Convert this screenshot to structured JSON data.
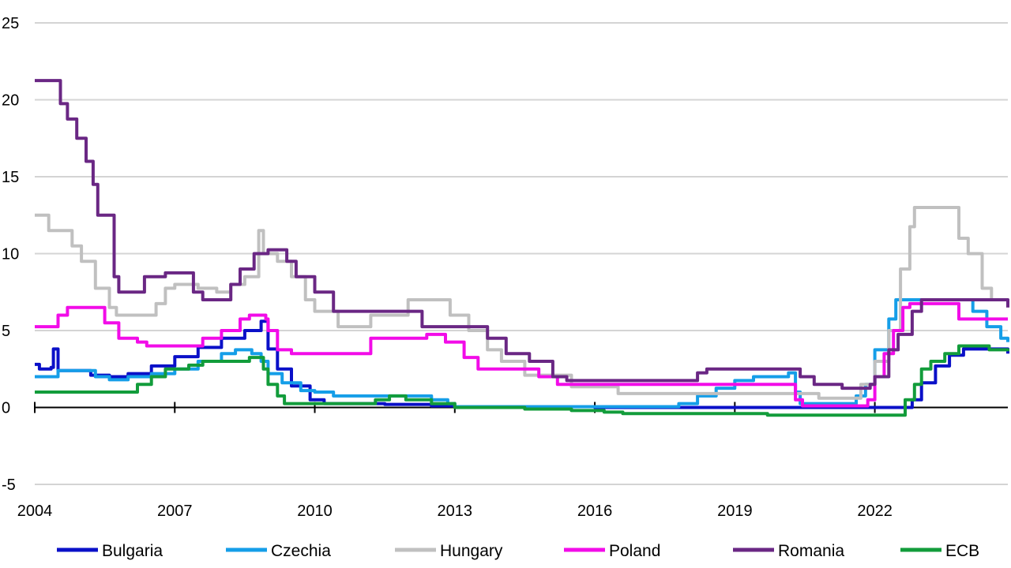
{
  "chart_data": {
    "type": "line",
    "step": true,
    "title": "",
    "xlabel": "",
    "ylabel": "",
    "xlim": [
      2004,
      2024.85
    ],
    "ylim": [
      -5,
      25
    ],
    "yticks": [
      -5,
      0,
      5,
      10,
      15,
      20,
      25
    ],
    "ytick_labels": [
      "-5",
      "0",
      "5",
      "10",
      "15",
      "20",
      "25"
    ],
    "xticks": [
      2004,
      2007,
      2010,
      2013,
      2016,
      2019,
      2022
    ],
    "xtick_labels": [
      "2004",
      "2007",
      "2010",
      "2013",
      "2016",
      "2019",
      "2022"
    ],
    "grid": "horizontal",
    "legend_position": "bottom",
    "series": [
      {
        "name": "Bulgaria",
        "color": "#0a10c8",
        "points": [
          [
            2004,
            2.8
          ],
          [
            2004.1,
            2.5
          ],
          [
            2004.35,
            2.6
          ],
          [
            2004.4,
            3.8
          ],
          [
            2004.5,
            2.4
          ],
          [
            2005.0,
            2.4
          ],
          [
            2005.2,
            2.1
          ],
          [
            2005.6,
            2.0
          ],
          [
            2006.0,
            2.2
          ],
          [
            2006.5,
            2.7
          ],
          [
            2007.0,
            3.3
          ],
          [
            2007.5,
            3.9
          ],
          [
            2008.0,
            4.5
          ],
          [
            2008.5,
            5.0
          ],
          [
            2008.85,
            5.6
          ],
          [
            2009.0,
            3.8
          ],
          [
            2009.2,
            2.5
          ],
          [
            2009.5,
            1.4
          ],
          [
            2009.9,
            0.5
          ],
          [
            2010.2,
            0.25
          ],
          [
            2011.5,
            0.2
          ],
          [
            2012.5,
            0.1
          ],
          [
            2013.0,
            0.05
          ],
          [
            2016.0,
            0.0
          ],
          [
            2022.7,
            0.0
          ],
          [
            2022.8,
            0.5
          ],
          [
            2023.0,
            1.6
          ],
          [
            2023.3,
            2.7
          ],
          [
            2023.6,
            3.4
          ],
          [
            2023.9,
            3.8
          ],
          [
            2024.5,
            3.8
          ],
          [
            2024.85,
            3.5
          ]
        ]
      },
      {
        "name": "Czechia",
        "color": "#159ee8",
        "points": [
          [
            2004,
            2.0
          ],
          [
            2004.3,
            2.0
          ],
          [
            2004.5,
            2.4
          ],
          [
            2005.0,
            2.4
          ],
          [
            2005.3,
            2.0
          ],
          [
            2005.6,
            1.8
          ],
          [
            2006.0,
            2.0
          ],
          [
            2006.5,
            2.2
          ],
          [
            2007.0,
            2.5
          ],
          [
            2007.5,
            3.0
          ],
          [
            2008.0,
            3.5
          ],
          [
            2008.3,
            3.75
          ],
          [
            2008.65,
            3.5
          ],
          [
            2008.85,
            3.0
          ],
          [
            2009.0,
            2.2
          ],
          [
            2009.3,
            1.6
          ],
          [
            2009.7,
            1.1
          ],
          [
            2010.0,
            1.0
          ],
          [
            2010.4,
            0.75
          ],
          [
            2011.5,
            0.75
          ],
          [
            2012.5,
            0.5
          ],
          [
            2012.85,
            0.25
          ],
          [
            2013.0,
            0.05
          ],
          [
            2017.6,
            0.05
          ],
          [
            2017.8,
            0.25
          ],
          [
            2018.2,
            0.75
          ],
          [
            2018.6,
            1.25
          ],
          [
            2019.0,
            1.75
          ],
          [
            2019.4,
            2.0
          ],
          [
            2020.15,
            2.25
          ],
          [
            2020.3,
            1.0
          ],
          [
            2020.4,
            0.25
          ],
          [
            2021.4,
            0.25
          ],
          [
            2021.6,
            0.75
          ],
          [
            2021.8,
            1.5
          ],
          [
            2022.0,
            3.75
          ],
          [
            2022.3,
            5.75
          ],
          [
            2022.45,
            7.0
          ],
          [
            2023.9,
            7.0
          ],
          [
            2024.1,
            6.25
          ],
          [
            2024.4,
            5.25
          ],
          [
            2024.7,
            4.5
          ],
          [
            2024.85,
            4.25
          ]
        ]
      },
      {
        "name": "Hungary",
        "color": "#c0c0c0",
        "points": [
          [
            2004,
            12.5
          ],
          [
            2004.2,
            12.5
          ],
          [
            2004.3,
            11.5
          ],
          [
            2004.6,
            11.5
          ],
          [
            2004.8,
            10.5
          ],
          [
            2005.0,
            9.5
          ],
          [
            2005.3,
            7.75
          ],
          [
            2005.6,
            6.5
          ],
          [
            2005.75,
            6.0
          ],
          [
            2006.4,
            6.0
          ],
          [
            2006.6,
            6.75
          ],
          [
            2006.8,
            7.75
          ],
          [
            2007.0,
            8.0
          ],
          [
            2007.5,
            7.75
          ],
          [
            2007.9,
            7.5
          ],
          [
            2008.2,
            8.0
          ],
          [
            2008.5,
            8.5
          ],
          [
            2008.8,
            11.5
          ],
          [
            2008.9,
            10.0
          ],
          [
            2009.2,
            9.5
          ],
          [
            2009.5,
            8.5
          ],
          [
            2009.8,
            7.0
          ],
          [
            2010.0,
            6.25
          ],
          [
            2010.5,
            5.25
          ],
          [
            2011.0,
            5.25
          ],
          [
            2011.2,
            6.0
          ],
          [
            2011.85,
            6.0
          ],
          [
            2012.0,
            7.0
          ],
          [
            2012.6,
            7.0
          ],
          [
            2012.9,
            6.0
          ],
          [
            2013.3,
            5.0
          ],
          [
            2013.7,
            3.75
          ],
          [
            2014.0,
            3.0
          ],
          [
            2014.5,
            2.1
          ],
          [
            2015.5,
            1.35
          ],
          [
            2016.3,
            1.35
          ],
          [
            2016.5,
            0.9
          ],
          [
            2020.5,
            0.9
          ],
          [
            2020.8,
            0.6
          ],
          [
            2021.5,
            0.6
          ],
          [
            2021.7,
            1.5
          ],
          [
            2022.0,
            3.0
          ],
          [
            2022.3,
            5.0
          ],
          [
            2022.55,
            9.0
          ],
          [
            2022.75,
            11.75
          ],
          [
            2022.85,
            13.0
          ],
          [
            2023.6,
            13.0
          ],
          [
            2023.8,
            11.0
          ],
          [
            2024.0,
            10.0
          ],
          [
            2024.3,
            7.75
          ],
          [
            2024.5,
            7.0
          ],
          [
            2024.85,
            6.5
          ]
        ]
      },
      {
        "name": "Poland",
        "color": "#f20ce8",
        "points": [
          [
            2004,
            5.25
          ],
          [
            2004.3,
            5.25
          ],
          [
            2004.5,
            6.0
          ],
          [
            2004.7,
            6.5
          ],
          [
            2005.2,
            6.5
          ],
          [
            2005.5,
            5.5
          ],
          [
            2005.8,
            4.5
          ],
          [
            2006.2,
            4.25
          ],
          [
            2006.4,
            4.0
          ],
          [
            2007.3,
            4.0
          ],
          [
            2007.6,
            4.5
          ],
          [
            2008.0,
            5.0
          ],
          [
            2008.4,
            5.75
          ],
          [
            2008.6,
            6.0
          ],
          [
            2008.95,
            5.75
          ],
          [
            2009.0,
            5.0
          ],
          [
            2009.2,
            3.75
          ],
          [
            2009.5,
            3.5
          ],
          [
            2010.9,
            3.5
          ],
          [
            2011.2,
            4.5
          ],
          [
            2012.4,
            4.75
          ],
          [
            2012.8,
            4.25
          ],
          [
            2013.2,
            3.25
          ],
          [
            2013.5,
            2.5
          ],
          [
            2014.6,
            2.5
          ],
          [
            2014.8,
            2.0
          ],
          [
            2015.2,
            1.5
          ],
          [
            2020.15,
            1.5
          ],
          [
            2020.3,
            0.5
          ],
          [
            2020.45,
            0.1
          ],
          [
            2021.75,
            0.1
          ],
          [
            2021.85,
            0.5
          ],
          [
            2022.0,
            2.0
          ],
          [
            2022.2,
            3.5
          ],
          [
            2022.4,
            5.0
          ],
          [
            2022.6,
            6.5
          ],
          [
            2022.75,
            6.75
          ],
          [
            2023.65,
            6.75
          ],
          [
            2023.8,
            5.75
          ],
          [
            2024.85,
            5.75
          ]
        ]
      },
      {
        "name": "Romania",
        "color": "#6a2784",
        "points": [
          [
            2004,
            21.25
          ],
          [
            2004.4,
            21.25
          ],
          [
            2004.55,
            19.75
          ],
          [
            2004.7,
            18.75
          ],
          [
            2004.9,
            17.5
          ],
          [
            2005.1,
            16.0
          ],
          [
            2005.25,
            14.5
          ],
          [
            2005.35,
            12.5
          ],
          [
            2005.65,
            12.5
          ],
          [
            2005.7,
            8.5
          ],
          [
            2005.8,
            7.5
          ],
          [
            2006.2,
            7.5
          ],
          [
            2006.35,
            8.5
          ],
          [
            2006.8,
            8.75
          ],
          [
            2007.2,
            8.75
          ],
          [
            2007.4,
            7.5
          ],
          [
            2007.6,
            7.0
          ],
          [
            2008.0,
            7.0
          ],
          [
            2008.2,
            8.0
          ],
          [
            2008.4,
            9.0
          ],
          [
            2008.7,
            10.0
          ],
          [
            2009.0,
            10.25
          ],
          [
            2009.4,
            9.5
          ],
          [
            2009.6,
            8.5
          ],
          [
            2010.0,
            7.5
          ],
          [
            2010.4,
            6.25
          ],
          [
            2011.7,
            6.25
          ],
          [
            2012.3,
            5.25
          ],
          [
            2013.4,
            5.25
          ],
          [
            2013.7,
            4.5
          ],
          [
            2014.1,
            3.5
          ],
          [
            2014.6,
            3.0
          ],
          [
            2015.1,
            2.0
          ],
          [
            2015.4,
            1.75
          ],
          [
            2018.0,
            1.75
          ],
          [
            2018.2,
            2.25
          ],
          [
            2018.4,
            2.5
          ],
          [
            2020.15,
            2.5
          ],
          [
            2020.4,
            2.0
          ],
          [
            2020.7,
            1.5
          ],
          [
            2021.3,
            1.25
          ],
          [
            2021.9,
            1.5
          ],
          [
            2022.0,
            2.0
          ],
          [
            2022.3,
            3.75
          ],
          [
            2022.5,
            4.75
          ],
          [
            2022.8,
            6.25
          ],
          [
            2023.0,
            7.0
          ],
          [
            2024.6,
            7.0
          ],
          [
            2024.85,
            6.5
          ]
        ]
      },
      {
        "name": "ECB",
        "color": "#129c3b",
        "points": [
          [
            2004,
            1.0
          ],
          [
            2005.9,
            1.0
          ],
          [
            2006.2,
            1.5
          ],
          [
            2006.5,
            2.0
          ],
          [
            2006.8,
            2.5
          ],
          [
            2007.3,
            2.75
          ],
          [
            2007.6,
            3.0
          ],
          [
            2008.6,
            3.25
          ],
          [
            2008.9,
            2.5
          ],
          [
            2009.0,
            1.5
          ],
          [
            2009.2,
            0.75
          ],
          [
            2009.35,
            0.25
          ],
          [
            2010.0,
            0.25
          ],
          [
            2011.3,
            0.5
          ],
          [
            2011.6,
            0.75
          ],
          [
            2011.95,
            0.5
          ],
          [
            2012.5,
            0.25
          ],
          [
            2013.0,
            0.0
          ],
          [
            2014.5,
            -0.1
          ],
          [
            2015.5,
            -0.2
          ],
          [
            2016.2,
            -0.3
          ],
          [
            2016.6,
            -0.4
          ],
          [
            2019.7,
            -0.5
          ],
          [
            2022.5,
            -0.5
          ],
          [
            2022.65,
            0.5
          ],
          [
            2022.85,
            1.5
          ],
          [
            2023.0,
            2.5
          ],
          [
            2023.2,
            3.0
          ],
          [
            2023.5,
            3.5
          ],
          [
            2023.8,
            4.0
          ],
          [
            2024.45,
            3.75
          ],
          [
            2024.85,
            3.65
          ]
        ]
      }
    ]
  }
}
